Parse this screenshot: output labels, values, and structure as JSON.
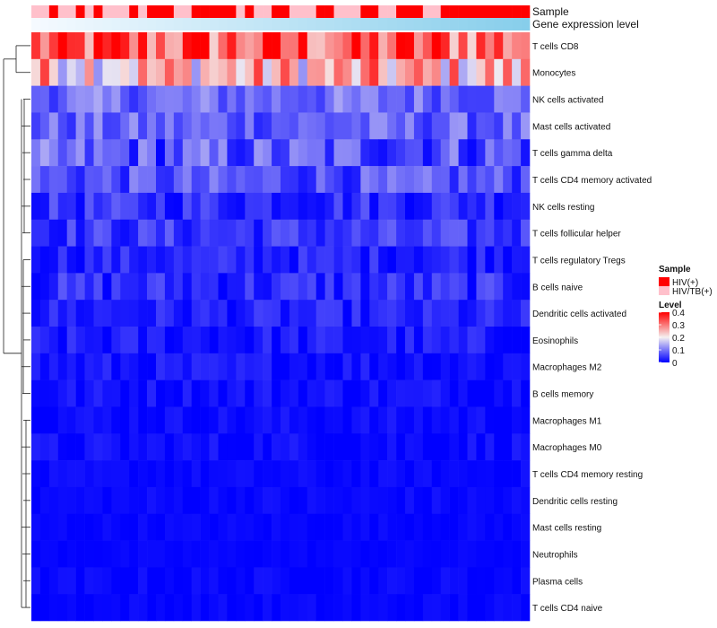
{
  "chart_data": {
    "type": "heatmap",
    "title": "",
    "column_annotations": [
      {
        "name": "Sample",
        "label": "Sample"
      },
      {
        "name": "Gene expression level",
        "label": "Gene expression level"
      }
    ],
    "sample_groups": [
      "HIV/TB(+)",
      "HIV/TB(+)",
      "HIV(+)",
      "HIV/TB(+)",
      "HIV/TB(+)",
      "HIV(+)",
      "HIV/TB(+)",
      "HIV(+)",
      "HIV/TB(+)",
      "HIV/TB(+)",
      "HIV/TB(+)",
      "HIV(+)",
      "HIV/TB(+)",
      "HIV(+)",
      "HIV(+)",
      "HIV(+)",
      "HIV/TB(+)",
      "HIV/TB(+)",
      "HIV(+)",
      "HIV(+)",
      "HIV(+)",
      "HIV(+)",
      "HIV(+)",
      "HIV/TB(+)",
      "HIV(+)",
      "HIV/TB(+)",
      "HIV/TB(+)",
      "HIV(+)",
      "HIV(+)",
      "HIV/TB(+)",
      "HIV/TB(+)",
      "HIV/TB(+)",
      "HIV(+)",
      "HIV(+)",
      "HIV/TB(+)",
      "HIV/TB(+)",
      "HIV/TB(+)",
      "HIV(+)",
      "HIV(+)",
      "HIV/TB(+)",
      "HIV/TB(+)",
      "HIV(+)",
      "HIV(+)",
      "HIV(+)",
      "HIV/TB(+)",
      "HIV/TB(+)",
      "HIV(+)",
      "HIV(+)",
      "HIV(+)",
      "HIV(+)",
      "HIV(+)",
      "HIV(+)",
      "HIV(+)",
      "HIV(+)",
      "HIV(+)",
      "HIV(+)"
    ],
    "rows": [
      "T cells CD8",
      "Monocytes",
      "NK cells activated",
      "Mast cells activated",
      "T cells gamma delta",
      "T cells CD4 memory activated",
      "NK cells resting",
      "T cells follicular helper",
      "T cells regulatory  Tregs",
      "B cells naive",
      "Dendritic cells activated",
      "Eosinophils",
      "Macrophages M2",
      "B cells memory",
      "Macrophages M1",
      "Macrophages M0",
      "T cells CD4 memory resting",
      "Dendritic cells resting",
      "Mast cells resting",
      "Neutrophils",
      "Plasma cells",
      "T cells CD4 naive"
    ],
    "row_levels": [
      0.32,
      0.24,
      0.09,
      0.08,
      0.07,
      0.065,
      0.04,
      0.045,
      0.03,
      0.035,
      0.025,
      0.018,
      0.015,
      0.014,
      0.01,
      0.009,
      0.006,
      0.006,
      0.005,
      0.004,
      0.005,
      0.004
    ],
    "row_spread": [
      0.12,
      0.12,
      0.05,
      0.05,
      0.07,
      0.05,
      0.04,
      0.04,
      0.03,
      0.04,
      0.03,
      0.03,
      0.025,
      0.02,
      0.015,
      0.02,
      0.01,
      0.012,
      0.008,
      0.005,
      0.012,
      0.01
    ],
    "value_range": [
      0,
      0.4
    ],
    "legend": {
      "sample": {
        "title": "Sample",
        "entries": [
          {
            "label": "HIV(+)",
            "color": "#ff0000"
          },
          {
            "label": "HIV/TB(+)",
            "color": "#ffc0cb"
          }
        ]
      },
      "level": {
        "title": "Level",
        "ticks": [
          "0.4",
          "0.3",
          "0.2",
          "0.1",
          "0"
        ],
        "tick_values": [
          0.4,
          0.3,
          0.2,
          0.1,
          0
        ]
      }
    },
    "colors": {
      "low": "#0000ff",
      "mid": "#f5f0f0",
      "high": "#ff0000",
      "hiv": "#ff0000",
      "hivtb": "#ffc0cb",
      "gene_level": "#87ceeb"
    }
  }
}
